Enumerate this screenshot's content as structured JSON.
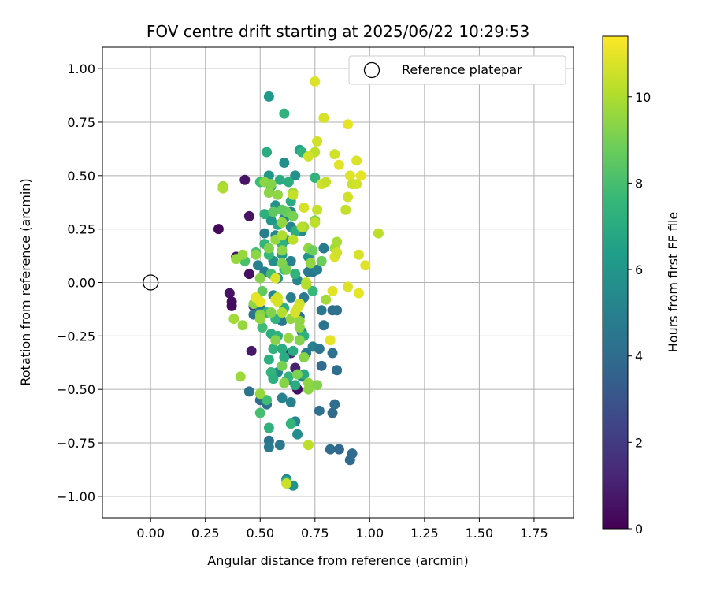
{
  "chart_data": {
    "type": "scatter",
    "title": "FOV centre drift starting at 2025/06/22 10:29:53",
    "xlabel": "Angular distance from reference (arcmin)",
    "ylabel": "Rotation from reference (arcmin)",
    "xlim": [
      -0.22,
      1.93
    ],
    "ylim": [
      -1.1,
      1.1
    ],
    "x_ticks": [
      0.0,
      0.25,
      0.5,
      0.75,
      1.0,
      1.25,
      1.5,
      1.75
    ],
    "x_tick_labels": [
      "0.00",
      "0.25",
      "0.50",
      "0.75",
      "1.00",
      "1.25",
      "1.50",
      "1.75"
    ],
    "y_ticks": [
      1.0,
      0.75,
      0.5,
      0.25,
      0.0,
      -0.25,
      -0.5,
      -0.75,
      -1.0
    ],
    "y_tick_labels": [
      "1.00",
      "0.75",
      "0.50",
      "0.25",
      "0.00",
      "−0.25",
      "−0.50",
      "−0.75",
      "−1.00"
    ],
    "grid": true,
    "legend": {
      "placement": "top-right",
      "entries": [
        "Reference platepar"
      ]
    },
    "reference_point": {
      "name": "Reference platepar",
      "x": 0.0,
      "y": 0.0
    },
    "colorbar": {
      "label": "Hours from first FF file",
      "colormap": "viridis",
      "range": [
        0,
        11.4
      ],
      "ticks": [
        0,
        2,
        4,
        6,
        8,
        10
      ],
      "tick_labels": [
        "0",
        "2",
        "4",
        "6",
        "8",
        "10"
      ],
      "stops": [
        "#440154",
        "#482878",
        "#3e4989",
        "#31688e",
        "#26828e",
        "#1f9e89",
        "#35b779",
        "#6ece58",
        "#b5de2b",
        "#fde725"
      ]
    },
    "points": [
      [
        0.31,
        0.25,
        0.2
      ],
      [
        0.43,
        0.48,
        0.6
      ],
      [
        0.45,
        0.31,
        0.6
      ],
      [
        0.39,
        0.12,
        0.7
      ],
      [
        0.45,
        0.04,
        0.5
      ],
      [
        0.36,
        -0.05,
        0.6
      ],
      [
        0.37,
        -0.09,
        0.4
      ],
      [
        0.37,
        -0.11,
        0.3
      ],
      [
        0.46,
        -0.32,
        0.7
      ],
      [
        0.67,
        -0.5,
        0.5
      ],
      [
        0.66,
        -0.4,
        1.0
      ],
      [
        0.64,
        -0.33,
        1.5
      ],
      [
        0.47,
        -0.11,
        1.6
      ],
      [
        0.54,
        0.87,
        6.2
      ],
      [
        0.53,
        0.61,
        7.0
      ],
      [
        0.61,
        0.56,
        5.6
      ],
      [
        0.66,
        0.5,
        5.8
      ],
      [
        0.68,
        0.62,
        6.5
      ],
      [
        0.69,
        0.61,
        7.3
      ],
      [
        0.54,
        0.5,
        6.0
      ],
      [
        0.57,
        0.36,
        5.8
      ],
      [
        0.61,
        0.3,
        5.4
      ],
      [
        0.64,
        0.33,
        5.2
      ],
      [
        0.52,
        0.23,
        4.9
      ],
      [
        0.57,
        0.22,
        5.3
      ],
      [
        0.64,
        0.26,
        5.2
      ],
      [
        0.69,
        0.24,
        5.5
      ],
      [
        0.72,
        0.12,
        5.8
      ],
      [
        0.74,
        0.05,
        4.5
      ],
      [
        0.64,
        0.1,
        5.0
      ],
      [
        0.56,
        0.1,
        5.6
      ],
      [
        0.52,
        0.05,
        4.8
      ],
      [
        0.49,
        0.08,
        5.0
      ],
      [
        0.58,
        0.02,
        5.5
      ],
      [
        0.67,
        0.01,
        5.2
      ],
      [
        0.7,
        -0.07,
        4.7
      ],
      [
        0.64,
        -0.07,
        4.9
      ],
      [
        0.56,
        -0.06,
        5.3
      ],
      [
        0.5,
        -0.12,
        4.7
      ],
      [
        0.47,
        -0.15,
        4.5
      ],
      [
        0.6,
        -0.18,
        4.6
      ],
      [
        0.68,
        -0.16,
        4.4
      ],
      [
        0.78,
        -0.13,
        4.6
      ],
      [
        0.79,
        -0.2,
        4.4
      ],
      [
        0.83,
        -0.13,
        4.0
      ],
      [
        0.85,
        -0.13,
        4.2
      ],
      [
        0.69,
        -0.23,
        5.2
      ],
      [
        0.68,
        -0.27,
        5.0
      ],
      [
        0.74,
        -0.3,
        5.0
      ],
      [
        0.71,
        -0.33,
        4.7
      ],
      [
        0.77,
        -0.31,
        4.5
      ],
      [
        0.83,
        -0.33,
        4.3
      ],
      [
        0.85,
        -0.41,
        4.1
      ],
      [
        0.78,
        -0.39,
        4.0
      ],
      [
        0.69,
        -0.44,
        5.2
      ],
      [
        0.62,
        -0.46,
        5.5
      ],
      [
        0.58,
        -0.42,
        5.3
      ],
      [
        0.45,
        -0.51,
        4.4
      ],
      [
        0.5,
        -0.55,
        4.0
      ],
      [
        0.53,
        -0.57,
        4.2
      ],
      [
        0.6,
        -0.54,
        5.0
      ],
      [
        0.64,
        -0.56,
        5.1
      ],
      [
        0.66,
        -0.65,
        5.3
      ],
      [
        0.67,
        -0.71,
        5.6
      ],
      [
        0.59,
        -0.76,
        4.6
      ],
      [
        0.54,
        -0.74,
        4.4
      ],
      [
        0.54,
        -0.77,
        4.7
      ],
      [
        0.77,
        -0.6,
        4.2
      ],
      [
        0.83,
        -0.61,
        4.0
      ],
      [
        0.84,
        -0.57,
        4.1
      ],
      [
        0.82,
        -0.78,
        4.0
      ],
      [
        0.86,
        -0.78,
        3.8
      ],
      [
        0.91,
        -0.83,
        3.9
      ],
      [
        0.92,
        -0.8,
        4.0
      ],
      [
        0.62,
        -0.92,
        5.4
      ],
      [
        0.65,
        -0.95,
        5.8
      ],
      [
        0.72,
        0.05,
        4.6
      ],
      [
        0.79,
        0.16,
        4.7
      ],
      [
        0.76,
        0.06,
        4.9
      ],
      [
        0.6,
        0.13,
        6.2
      ],
      [
        0.62,
        0.2,
        6.5
      ],
      [
        0.58,
        0.27,
        6.8
      ],
      [
        0.55,
        0.29,
        6.0
      ],
      [
        0.52,
        0.32,
        7.2
      ],
      [
        0.55,
        0.45,
        7.6
      ],
      [
        0.59,
        0.48,
        7.0
      ],
      [
        0.63,
        0.47,
        7.1
      ],
      [
        0.61,
        0.79,
        7.3
      ],
      [
        0.5,
        0.47,
        7.8
      ],
      [
        0.75,
        0.49,
        7.4
      ],
      [
        0.64,
        0.38,
        7.0
      ],
      [
        0.52,
        0.18,
        7.5
      ],
      [
        0.6,
        0.18,
        7.3
      ],
      [
        0.66,
        0.24,
        7.2
      ],
      [
        0.54,
        0.13,
        7.6
      ],
      [
        0.48,
        0.14,
        8.0
      ],
      [
        0.43,
        0.1,
        8.1
      ],
      [
        0.55,
        0.04,
        7.9
      ],
      [
        0.61,
        0.06,
        7.7
      ],
      [
        0.66,
        0.04,
        7.4
      ],
      [
        0.74,
        -0.04,
        7.6
      ],
      [
        0.61,
        -0.12,
        7.2
      ],
      [
        0.53,
        -0.14,
        7.6
      ],
      [
        0.57,
        -0.17,
        7.4
      ],
      [
        0.51,
        -0.21,
        7.8
      ],
      [
        0.55,
        -0.24,
        7.1
      ],
      [
        0.58,
        -0.25,
        7.3
      ],
      [
        0.54,
        -0.36,
        7.2
      ],
      [
        0.55,
        -0.42,
        7.5
      ],
      [
        0.56,
        -0.45,
        7.2
      ],
      [
        0.63,
        -0.44,
        7.4
      ],
      [
        0.66,
        -0.48,
        7.0
      ],
      [
        0.53,
        -0.55,
        7.8
      ],
      [
        0.5,
        -0.61,
        8.0
      ],
      [
        0.54,
        -0.68,
        7.3
      ],
      [
        0.64,
        -0.66,
        7.5
      ],
      [
        0.7,
        -0.43,
        6.9
      ],
      [
        0.65,
        -0.32,
        7.0
      ],
      [
        0.7,
        -0.25,
        7.2
      ],
      [
        0.56,
        -0.31,
        7.3
      ],
      [
        0.6,
        -0.31,
        7.1
      ],
      [
        0.61,
        -0.35,
        7.0
      ],
      [
        0.62,
        -0.93,
        7.1
      ],
      [
        0.33,
        0.45,
        9.8
      ],
      [
        0.33,
        0.44,
        10.0
      ],
      [
        0.39,
        0.11,
        9.6
      ],
      [
        0.42,
        0.13,
        9.6
      ],
      [
        0.48,
        0.13,
        9.4
      ],
      [
        0.52,
        0.47,
        9.4
      ],
      [
        0.55,
        0.46,
        9.3
      ],
      [
        0.54,
        0.42,
        9.4
      ],
      [
        0.58,
        0.41,
        9.5
      ],
      [
        0.65,
        0.42,
        9.7
      ],
      [
        0.6,
        0.28,
        9.5
      ],
      [
        0.54,
        0.16,
        9.2
      ],
      [
        0.57,
        0.2,
        9.6
      ],
      [
        0.6,
        0.15,
        9.4
      ],
      [
        0.7,
        0.26,
        9.7
      ],
      [
        0.75,
        0.29,
        9.2
      ],
      [
        0.72,
        0.16,
        9.5
      ],
      [
        0.73,
        0.09,
        9.5
      ],
      [
        0.6,
        0.09,
        9.2
      ],
      [
        0.62,
        0.06,
        9.0
      ],
      [
        0.5,
        0.02,
        9.3
      ],
      [
        0.51,
        -0.04,
        8.6
      ],
      [
        0.49,
        -0.08,
        9.2
      ],
      [
        0.47,
        -0.1,
        9.4
      ],
      [
        0.5,
        -0.15,
        9.3
      ],
      [
        0.5,
        -0.17,
        9.6
      ],
      [
        0.55,
        -0.14,
        9.2
      ],
      [
        0.57,
        -0.27,
        9.3
      ],
      [
        0.64,
        -0.17,
        9.5
      ],
      [
        0.63,
        -0.26,
        9.6
      ],
      [
        0.68,
        -0.18,
        9.5
      ],
      [
        0.68,
        -0.21,
        9.4
      ],
      [
        0.68,
        -0.27,
        9.2
      ],
      [
        0.7,
        -0.35,
        9.3
      ],
      [
        0.72,
        -0.47,
        9.5
      ],
      [
        0.76,
        -0.48,
        9.2
      ],
      [
        0.72,
        -0.5,
        9.4
      ],
      [
        0.67,
        -0.43,
        9.1
      ],
      [
        0.61,
        -0.47,
        9.3
      ],
      [
        0.6,
        -0.39,
        9.0
      ],
      [
        0.42,
        -0.2,
        9.6
      ],
      [
        0.38,
        -0.17,
        9.8
      ],
      [
        0.41,
        -0.44,
        9.7
      ],
      [
        0.5,
        -0.52,
        9.6
      ],
      [
        0.8,
        -0.08,
        9.8
      ],
      [
        0.84,
        0.16,
        9.8
      ],
      [
        0.85,
        0.19,
        9.9
      ],
      [
        0.74,
        0.15,
        8.8
      ],
      [
        0.78,
        0.1,
        8.8
      ],
      [
        0.62,
        0.33,
        8.8
      ],
      [
        0.65,
        0.31,
        9.0
      ],
      [
        0.56,
        0.33,
        8.5
      ],
      [
        0.6,
        0.34,
        8.6
      ],
      [
        0.75,
        0.94,
        10.8
      ],
      [
        0.79,
        0.77,
        10.7
      ],
      [
        0.9,
        0.74,
        11.0
      ],
      [
        0.84,
        0.6,
        10.6
      ],
      [
        0.86,
        0.55,
        10.9
      ],
      [
        0.91,
        0.5,
        10.9
      ],
      [
        0.94,
        0.57,
        10.8
      ],
      [
        0.96,
        0.5,
        11.0
      ],
      [
        0.92,
        0.46,
        10.5
      ],
      [
        0.94,
        0.46,
        10.6
      ],
      [
        0.78,
        0.46,
        10.6
      ],
      [
        0.8,
        0.47,
        10.4
      ],
      [
        0.75,
        0.61,
        10.3
      ],
      [
        0.76,
        0.66,
        10.6
      ],
      [
        0.72,
        0.59,
        10.6
      ],
      [
        0.65,
        0.41,
        10.4
      ],
      [
        0.7,
        0.35,
        10.7
      ],
      [
        0.76,
        0.34,
        10.4
      ],
      [
        0.75,
        0.28,
        10.3
      ],
      [
        0.69,
        0.26,
        10.2
      ],
      [
        0.65,
        0.2,
        10.3
      ],
      [
        0.6,
        0.22,
        10.0
      ],
      [
        0.84,
        0.12,
        10.8
      ],
      [
        0.85,
        0.14,
        10.6
      ],
      [
        0.9,
        0.4,
        10.6
      ],
      [
        0.89,
        0.34,
        10.4
      ],
      [
        0.95,
        0.13,
        10.7
      ],
      [
        0.98,
        0.08,
        10.9
      ],
      [
        1.04,
        0.23,
        10.3
      ],
      [
        0.95,
        -0.05,
        11.0
      ],
      [
        0.9,
        -0.02,
        10.8
      ],
      [
        0.83,
        -0.04,
        10.9
      ],
      [
        0.71,
        0.0,
        10.4
      ],
      [
        0.71,
        -0.01,
        10.1
      ],
      [
        0.68,
        -0.1,
        10.6
      ],
      [
        0.67,
        -0.12,
        10.7
      ],
      [
        0.66,
        -0.14,
        10.7
      ],
      [
        0.57,
        -0.08,
        10.9
      ],
      [
        0.58,
        -0.07,
        10.5
      ],
      [
        0.58,
        -0.09,
        10.7
      ],
      [
        0.6,
        -0.14,
        10.1
      ],
      [
        0.57,
        0.02,
        10.8
      ],
      [
        0.5,
        -0.09,
        11.1
      ],
      [
        0.48,
        -0.07,
        11.0
      ],
      [
        0.82,
        -0.27,
        11.0
      ],
      [
        0.72,
        -0.76,
        10.3
      ],
      [
        0.62,
        -0.94,
        10.5
      ]
    ]
  }
}
